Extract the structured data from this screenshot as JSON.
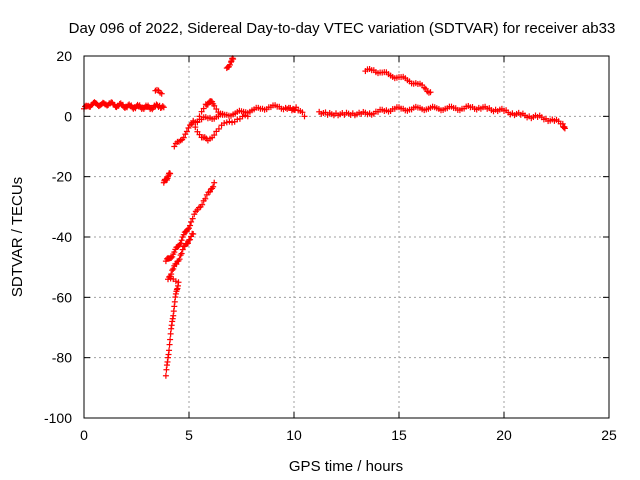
{
  "chart_data": {
    "type": "scatter",
    "title": "Day 096 of 2022, Sidereal Day-to-day VTEC variation (SDTVAR) for receiver ab33",
    "xlabel": "GPS time / hours",
    "ylabel": "SDTVAR / TECUs",
    "xlim": [
      0,
      25
    ],
    "ylim": [
      -100,
      20
    ],
    "xticks": [
      0,
      5,
      10,
      15,
      20,
      25
    ],
    "yticks": [
      -100,
      -80,
      -60,
      -40,
      -20,
      0,
      20
    ],
    "grid": true,
    "marker": "+",
    "color": "#ff0000",
    "series": [
      {
        "name": "main-trace",
        "points": [
          [
            0.0,
            2.5
          ],
          [
            0.2,
            3.5
          ],
          [
            0.4,
            4.0
          ],
          [
            0.6,
            4.2
          ],
          [
            0.8,
            3.8
          ],
          [
            1.0,
            4.0
          ],
          [
            1.2,
            4.3
          ],
          [
            1.4,
            3.9
          ],
          [
            1.6,
            3.5
          ],
          [
            1.8,
            3.8
          ],
          [
            2.0,
            3.2
          ],
          [
            2.2,
            3.4
          ],
          [
            2.4,
            3.0
          ],
          [
            2.6,
            3.3
          ],
          [
            2.8,
            2.9
          ],
          [
            3.0,
            3.1
          ],
          [
            3.2,
            2.8
          ],
          [
            3.4,
            3.3
          ],
          [
            3.6,
            3.5
          ],
          [
            3.8,
            3.0
          ],
          [
            5.2,
            -1.5
          ],
          [
            5.6,
            -1.0
          ],
          [
            6.0,
            -0.5
          ],
          [
            6.4,
            0.0
          ],
          [
            6.8,
            0.5
          ],
          [
            7.2,
            1.0
          ],
          [
            7.6,
            1.5
          ],
          [
            8.0,
            2.0
          ],
          [
            8.4,
            2.5
          ],
          [
            8.8,
            3.0
          ],
          [
            9.2,
            3.2
          ],
          [
            9.6,
            2.8
          ],
          [
            9.9,
            2.0
          ],
          [
            10.1,
            3.0
          ],
          [
            10.5,
            0.0
          ],
          [
            11.2,
            1.5
          ],
          [
            11.6,
            0.5
          ],
          [
            12.0,
            1.0
          ],
          [
            12.4,
            0.5
          ],
          [
            12.8,
            1.0
          ],
          [
            13.2,
            0.8
          ],
          [
            13.6,
            1.0
          ],
          [
            14.0,
            1.5
          ],
          [
            14.4,
            2.0
          ],
          [
            14.8,
            2.5
          ],
          [
            15.2,
            2.5
          ],
          [
            15.6,
            2.3
          ],
          [
            16.0,
            2.8
          ],
          [
            16.4,
            2.5
          ],
          [
            16.8,
            2.7
          ],
          [
            17.2,
            2.5
          ],
          [
            17.6,
            2.8
          ],
          [
            18.0,
            2.5
          ],
          [
            18.4,
            3.0
          ],
          [
            18.8,
            2.8
          ],
          [
            19.2,
            2.5
          ],
          [
            19.6,
            2.2
          ],
          [
            20.0,
            1.8
          ],
          [
            20.4,
            1.0
          ],
          [
            20.8,
            0.5
          ],
          [
            21.2,
            0.0
          ],
          [
            21.6,
            -0.2
          ],
          [
            22.0,
            -0.8
          ],
          [
            22.4,
            -1.5
          ],
          [
            22.8,
            -2.5
          ],
          [
            22.9,
            -4.0
          ]
        ]
      },
      {
        "name": "upper-arc",
        "points": [
          [
            13.4,
            15.0
          ],
          [
            13.8,
            15.3
          ],
          [
            14.2,
            14.5
          ],
          [
            14.6,
            13.5
          ],
          [
            15.0,
            13.0
          ],
          [
            15.4,
            12.0
          ],
          [
            15.8,
            11.0
          ],
          [
            16.2,
            9.5
          ],
          [
            16.5,
            8.0
          ]
        ]
      },
      {
        "name": "rising-arc-near-7h",
        "points": [
          [
            5.4,
            -2.0
          ],
          [
            5.8,
            4.0
          ],
          [
            6.0,
            5.0
          ],
          [
            6.2,
            3.5
          ],
          [
            6.6,
            0.5
          ],
          [
            6.8,
            16.0
          ],
          [
            7.0,
            18.0
          ],
          [
            7.1,
            19.0
          ]
        ]
      },
      {
        "name": "converging-trace",
        "points": [
          [
            4.3,
            -10.0
          ],
          [
            4.6,
            -8.0
          ],
          [
            4.9,
            -5.0
          ],
          [
            5.2,
            -2.0
          ],
          [
            5.6,
            -7.0
          ],
          [
            5.9,
            -8.0
          ],
          [
            6.3,
            -5.0
          ],
          [
            6.8,
            -2.0
          ],
          [
            7.3,
            -1.0
          ],
          [
            7.8,
            0.0
          ]
        ]
      },
      {
        "name": "short-segment-near-4h",
        "points": [
          [
            3.4,
            8.5
          ],
          [
            3.7,
            7.5
          ],
          [
            3.8,
            -22.0
          ],
          [
            3.9,
            -21.0
          ],
          [
            4.0,
            -20.0
          ],
          [
            4.1,
            -19.0
          ]
        ]
      },
      {
        "name": "steep-descent",
        "points": [
          [
            3.9,
            -48.0
          ],
          [
            4.1,
            -47.0
          ],
          [
            4.3,
            -45.0
          ],
          [
            4.5,
            -43.0
          ],
          [
            4.7,
            -40.0
          ],
          [
            4.9,
            -38.0
          ],
          [
            5.1,
            -35.0
          ],
          [
            5.4,
            -31.0
          ],
          [
            5.7,
            -28.0
          ],
          [
            6.0,
            -25.0
          ],
          [
            6.2,
            -22.0
          ]
        ]
      },
      {
        "name": "lower-descent",
        "points": [
          [
            3.9,
            -86.0
          ],
          [
            4.0,
            -80.0
          ],
          [
            4.1,
            -74.0
          ],
          [
            4.2,
            -68.0
          ],
          [
            4.3,
            -63.0
          ],
          [
            4.4,
            -58.0
          ],
          [
            4.5,
            -55.0
          ],
          [
            4.0,
            -54.0
          ],
          [
            4.2,
            -51.0
          ],
          [
            4.4,
            -49.0
          ],
          [
            4.6,
            -46.0
          ],
          [
            4.8,
            -43.0
          ],
          [
            5.0,
            -41.0
          ],
          [
            5.2,
            -39.0
          ]
        ]
      }
    ]
  }
}
